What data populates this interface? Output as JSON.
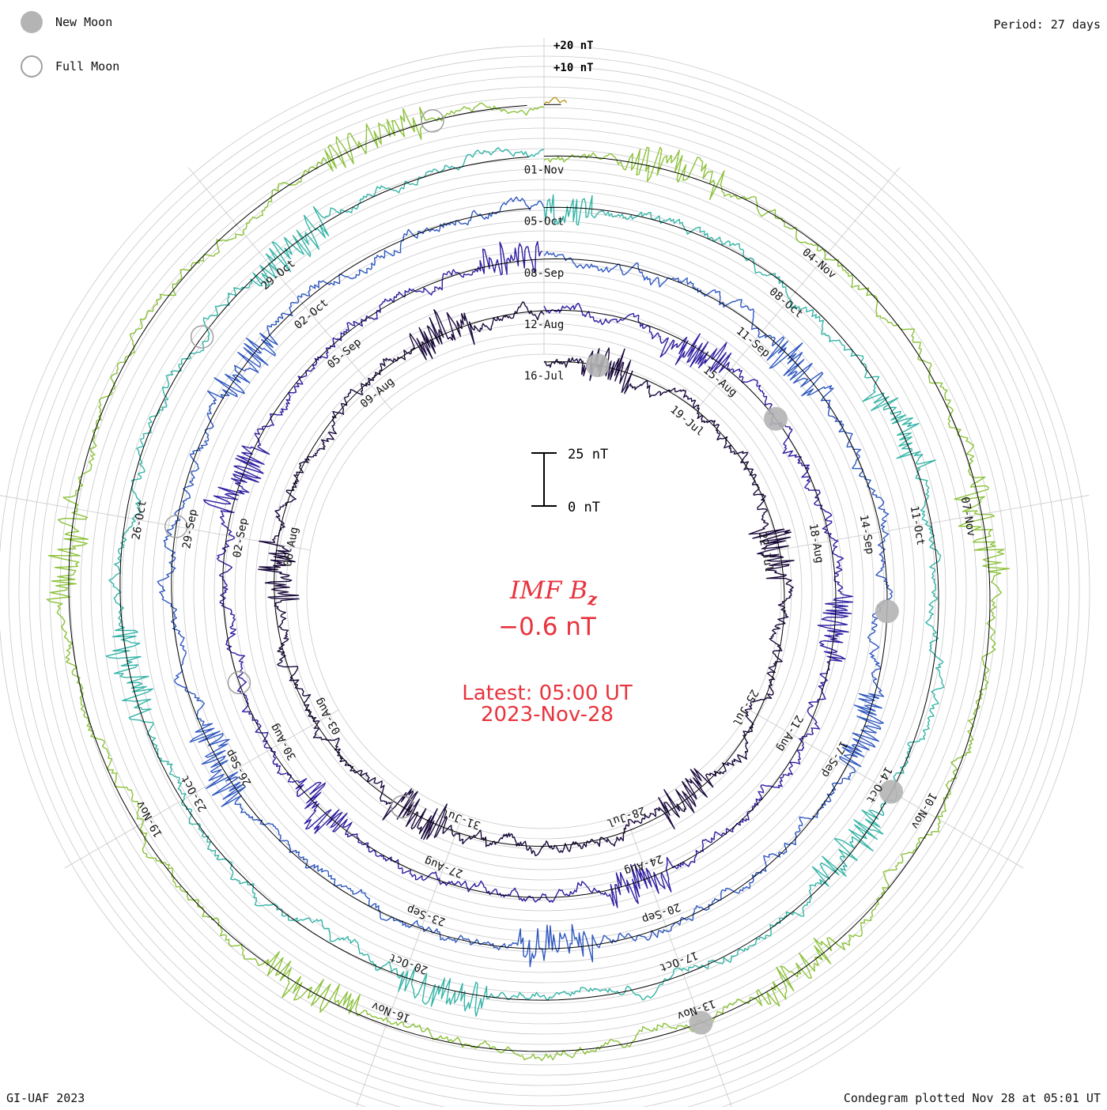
{
  "header": {
    "period_label": "Period: 27 days",
    "legend": [
      {
        "label": "New Moon",
        "icon": "new-moon-icon",
        "fill": "#b4b4b4"
      },
      {
        "label": "Full Moon",
        "icon": "full-moon-icon",
        "fill": "none"
      }
    ]
  },
  "footer": {
    "credit": "GI-UAF 2023",
    "plotted": "Condegram plotted Nov 28 at 05:01 UT"
  },
  "center": {
    "title_main": "IMF B",
    "title_sub": "z",
    "current_value": "−0.6 nT",
    "latest_line": "Latest: 05:00 UT",
    "latest_date": "2023-Nov-28",
    "text_color": "#e8343e"
  },
  "chart_data": {
    "type": "condegram",
    "period_days": 27,
    "scale_labels": [
      "+20 nT",
      "+10 nT"
    ],
    "scale_bar": {
      "top_label": "25 nT",
      "bottom_label": "0 nT",
      "range_nT": [
        0,
        25
      ]
    },
    "start_date": "2023-07-16",
    "end_date": "2023-11-28",
    "grid": true,
    "cycles": [
      {
        "color": "#1a0a3c",
        "date_labels": [
          "16-Jul",
          "19-Jul",
          "22-Jul",
          "25-Jul",
          "28-Jul",
          "31-Jul",
          "03-Aug",
          "06-Aug",
          "09-Aug"
        ]
      },
      {
        "color": "#2e1ea0",
        "date_labels": [
          "12-Aug",
          "15-Aug",
          "18-Aug",
          "21-Aug",
          "24-Aug",
          "27-Aug",
          "30-Aug",
          "02-Sep",
          "05-Sep"
        ]
      },
      {
        "color": "#2f58c0",
        "date_labels": [
          "08-Sep",
          "11-Sep",
          "14-Sep",
          "17-Sep",
          "20-Sep",
          "23-Sep",
          "26-Sep",
          "29-Sep",
          "02-Oct"
        ]
      },
      {
        "color": "#35b5a8",
        "date_labels": [
          "05-Oct",
          "08-Oct",
          "11-Oct",
          "14-Oct",
          "17-Oct",
          "20-Oct",
          "23-Oct",
          "26-Oct",
          "29-Oct"
        ]
      },
      {
        "color": "#8cc23a",
        "date_labels": [
          "01-Nov",
          "04-Nov",
          "07-Nov",
          "10-Nov",
          "13-Nov",
          "16-Nov",
          "19-Nov"
        ]
      },
      {
        "color": "#b89a1c",
        "date_labels": []
      },
      {
        "color": "#c23a10",
        "date_labels": []
      }
    ],
    "new_moons": [
      "2023-07-17",
      "2023-08-16",
      "2023-09-15",
      "2023-10-14",
      "2023-11-13"
    ],
    "full_moons": [
      "2023-08-01",
      "2023-08-31",
      "2023-09-29",
      "2023-10-28",
      "2023-11-27"
    ]
  }
}
